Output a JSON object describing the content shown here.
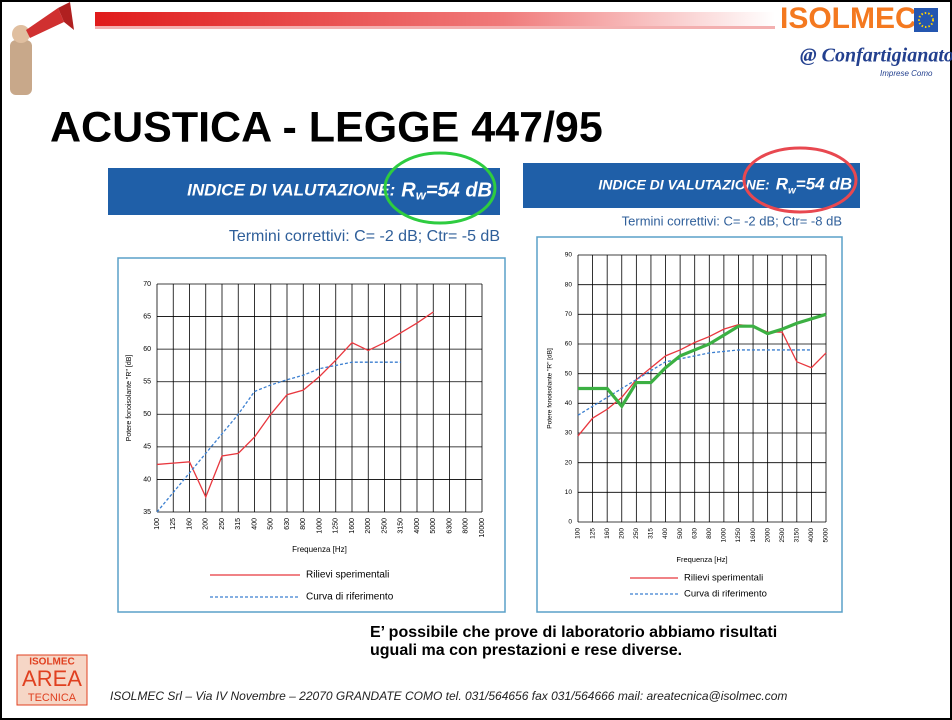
{
  "header": {
    "title": "ACUSTICA - LEGGE 447/95",
    "logo": "ISOLMEC",
    "partner": "@ Confartigianato",
    "partner_sub": "Imprese Como"
  },
  "chart_data": [
    {
      "type": "line",
      "banner": "INDICE DI VALUTAZIONE:",
      "rating_symbol": "R",
      "rating_subscript": "w",
      "rating_text": "=54 dB",
      "subtitle": "Termini correttivi: C= -2 dB; Ctr= -5 dB",
      "xlabel": "Frequenza [Hz]",
      "ylabel": "Potere fonoisolante \"R\" [dB]",
      "categories": [
        "100",
        "125",
        "160",
        "200",
        "250",
        "315",
        "400",
        "500",
        "630",
        "800",
        "1000",
        "1250",
        "1600",
        "2000",
        "2500",
        "3150",
        "4000",
        "5000",
        "6300",
        "8000",
        "10000"
      ],
      "ylim": [
        35,
        70
      ],
      "yticks": [
        35,
        40,
        45,
        50,
        55,
        60,
        65,
        70
      ],
      "grid": true,
      "series": [
        {
          "name": "Rilievi sperimentali",
          "color": "#e8373e",
          "style": "solid",
          "values": [
            42.3,
            42.5,
            42.7,
            37.3,
            43.6,
            44,
            46.5,
            50,
            53,
            53.7,
            55.8,
            58.3,
            61,
            59.8,
            61,
            62.5,
            64,
            65.7,
            null,
            null,
            null
          ]
        },
        {
          "name": "Curva di riferimento",
          "color": "#3b7fd0",
          "style": "dashed",
          "values": [
            35,
            38,
            41,
            44,
            47,
            50,
            53.5,
            54.5,
            55.3,
            56,
            57,
            57.5,
            58,
            58,
            58,
            58,
            null,
            null,
            null,
            null,
            null
          ]
        }
      ]
    },
    {
      "type": "line",
      "banner": "INDICE DI VALUTAZIONE:",
      "rating_symbol": "R",
      "rating_subscript": "w",
      "rating_text": "=54 dB",
      "subtitle": "Termini correttivi: C= -2 dB; Ctr= -8 dB",
      "xlabel": "Frequenza [Hz]",
      "ylabel": "Potere fonoisolante \"R\" [dB]",
      "categories": [
        "100",
        "125",
        "160",
        "200",
        "250",
        "315",
        "400",
        "500",
        "630",
        "800",
        "1000",
        "1250",
        "1600",
        "2000",
        "2500",
        "3150",
        "4000",
        "5000"
      ],
      "ylim": [
        0,
        90
      ],
      "yticks": [
        0,
        10,
        20,
        30,
        40,
        50,
        60,
        70,
        80,
        90
      ],
      "grid": true,
      "series": [
        {
          "name": "Rilievi sperimentali",
          "color": "#e8373e",
          "style": "solid",
          "values": [
            29,
            35,
            38,
            42,
            48,
            52,
            56,
            58,
            60.5,
            62.5,
            65,
            66.5,
            66,
            64,
            64,
            54,
            52,
            57
          ]
        },
        {
          "name": "Curva di riferimento",
          "color": "#3b7fd0",
          "style": "dashed",
          "values": [
            36,
            39,
            42,
            45,
            48,
            51,
            54,
            55,
            56,
            57,
            57.5,
            58,
            58,
            58,
            58,
            58,
            58,
            null
          ]
        },
        {
          "color": "#3cb043",
          "style": "thick",
          "values": [
            45,
            45,
            45,
            39,
            47,
            47,
            52,
            56,
            58,
            60,
            63,
            66,
            66,
            63.5,
            65,
            67,
            68.5,
            70
          ]
        }
      ]
    }
  ],
  "note": [
    "E’ possibile che prove di laboratorio abbiamo risultati",
    "uguali ma con prestazioni e rese diverse."
  ],
  "footer": {
    "logo": [
      "ISOLMEC",
      "AREA",
      "TECNICA"
    ],
    "text": "ISOLMEC Srl – Via IV Novembre – 22070 GRANDATE COMO  tel. 031/564656  fax 031/564666  mail: areatecnica@isolmec.com"
  }
}
